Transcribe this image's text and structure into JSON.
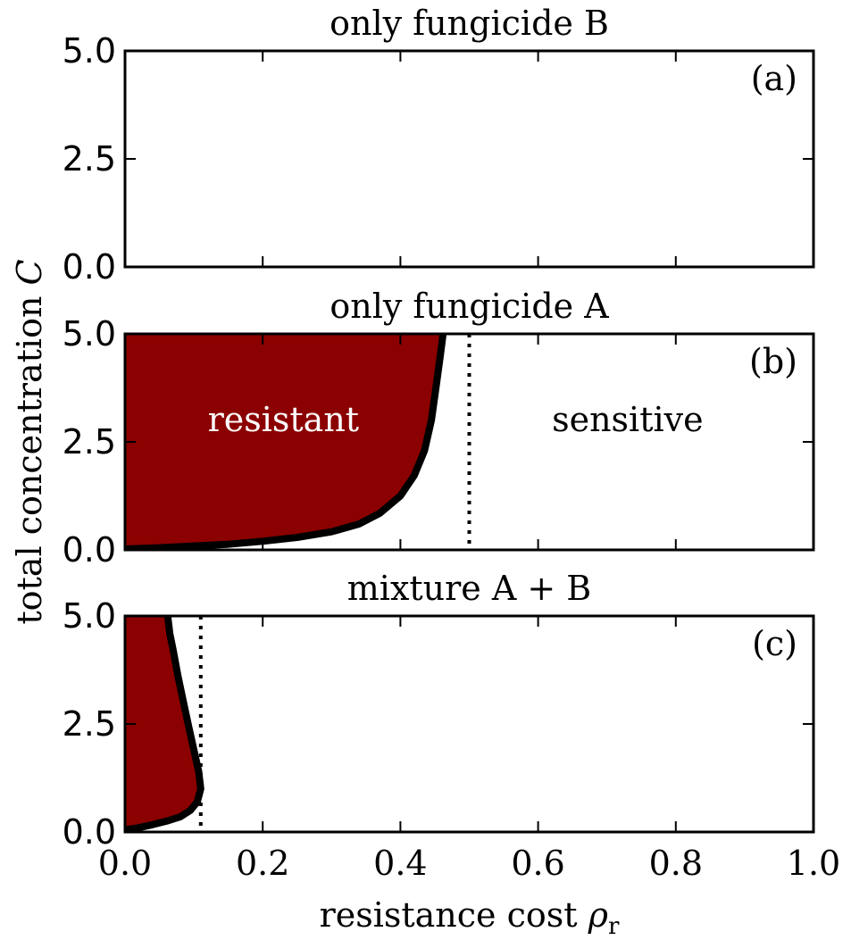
{
  "colors": {
    "resistant_fill": "#8b0000",
    "boundary_line": "#000000",
    "background": "#ffffff"
  },
  "chart_data": [
    {
      "type": "area",
      "panel_label": "(a)",
      "title": "only fungicide B",
      "xlim": [
        0.0,
        1.0
      ],
      "ylim": [
        0.0,
        5.0
      ],
      "yticks": [
        "0.0",
        "2.5",
        "5.0"
      ],
      "boundary": [],
      "threshold_x": null,
      "region_labels": []
    },
    {
      "type": "area",
      "panel_label": "(b)",
      "title": "only fungicide A",
      "xlim": [
        0.0,
        1.0
      ],
      "ylim": [
        0.0,
        5.0
      ],
      "yticks": [
        "0.0",
        "2.5",
        "5.0"
      ],
      "boundary": [
        [
          0.0,
          0.02
        ],
        [
          0.05,
          0.05
        ],
        [
          0.1,
          0.09
        ],
        [
          0.15,
          0.13
        ],
        [
          0.2,
          0.2
        ],
        [
          0.25,
          0.29
        ],
        [
          0.3,
          0.42
        ],
        [
          0.34,
          0.6
        ],
        [
          0.37,
          0.85
        ],
        [
          0.4,
          1.25
        ],
        [
          0.42,
          1.72
        ],
        [
          0.435,
          2.3
        ],
        [
          0.445,
          3.0
        ],
        [
          0.452,
          3.8
        ],
        [
          0.458,
          4.5
        ],
        [
          0.462,
          5.0
        ]
      ],
      "threshold_x": 0.5,
      "region_labels": [
        {
          "text": "resistant",
          "x": 0.23,
          "y": 3.0
        },
        {
          "text": "sensitive",
          "x": 0.73,
          "y": 3.0
        }
      ]
    },
    {
      "type": "area",
      "panel_label": "(c)",
      "title": "mixture A + B",
      "xlim": [
        0.0,
        1.0
      ],
      "ylim": [
        0.0,
        5.0
      ],
      "yticks": [
        "0.0",
        "2.5",
        "5.0"
      ],
      "boundary": [
        [
          0.0,
          0.05
        ],
        [
          0.02,
          0.1
        ],
        [
          0.04,
          0.17
        ],
        [
          0.06,
          0.25
        ],
        [
          0.08,
          0.35
        ],
        [
          0.095,
          0.5
        ],
        [
          0.105,
          0.7
        ],
        [
          0.11,
          1.0
        ],
        [
          0.107,
          1.4
        ],
        [
          0.1,
          1.9
        ],
        [
          0.093,
          2.4
        ],
        [
          0.085,
          3.0
        ],
        [
          0.077,
          3.6
        ],
        [
          0.07,
          4.2
        ],
        [
          0.065,
          4.6
        ],
        [
          0.062,
          5.0
        ]
      ],
      "threshold_x": 0.11,
      "region_labels": []
    }
  ],
  "axes": {
    "xticks": [
      "0.0",
      "0.2",
      "0.4",
      "0.6",
      "0.8",
      "1.0"
    ],
    "xtick_values": [
      0.0,
      0.2,
      0.4,
      0.6,
      0.8,
      1.0
    ],
    "xlabel": "resistance cost ",
    "xlabel_symbol": "ρ",
    "xlabel_subscript": "r",
    "ylabel": "total concentration ",
    "ylabel_symbol": "C"
  }
}
